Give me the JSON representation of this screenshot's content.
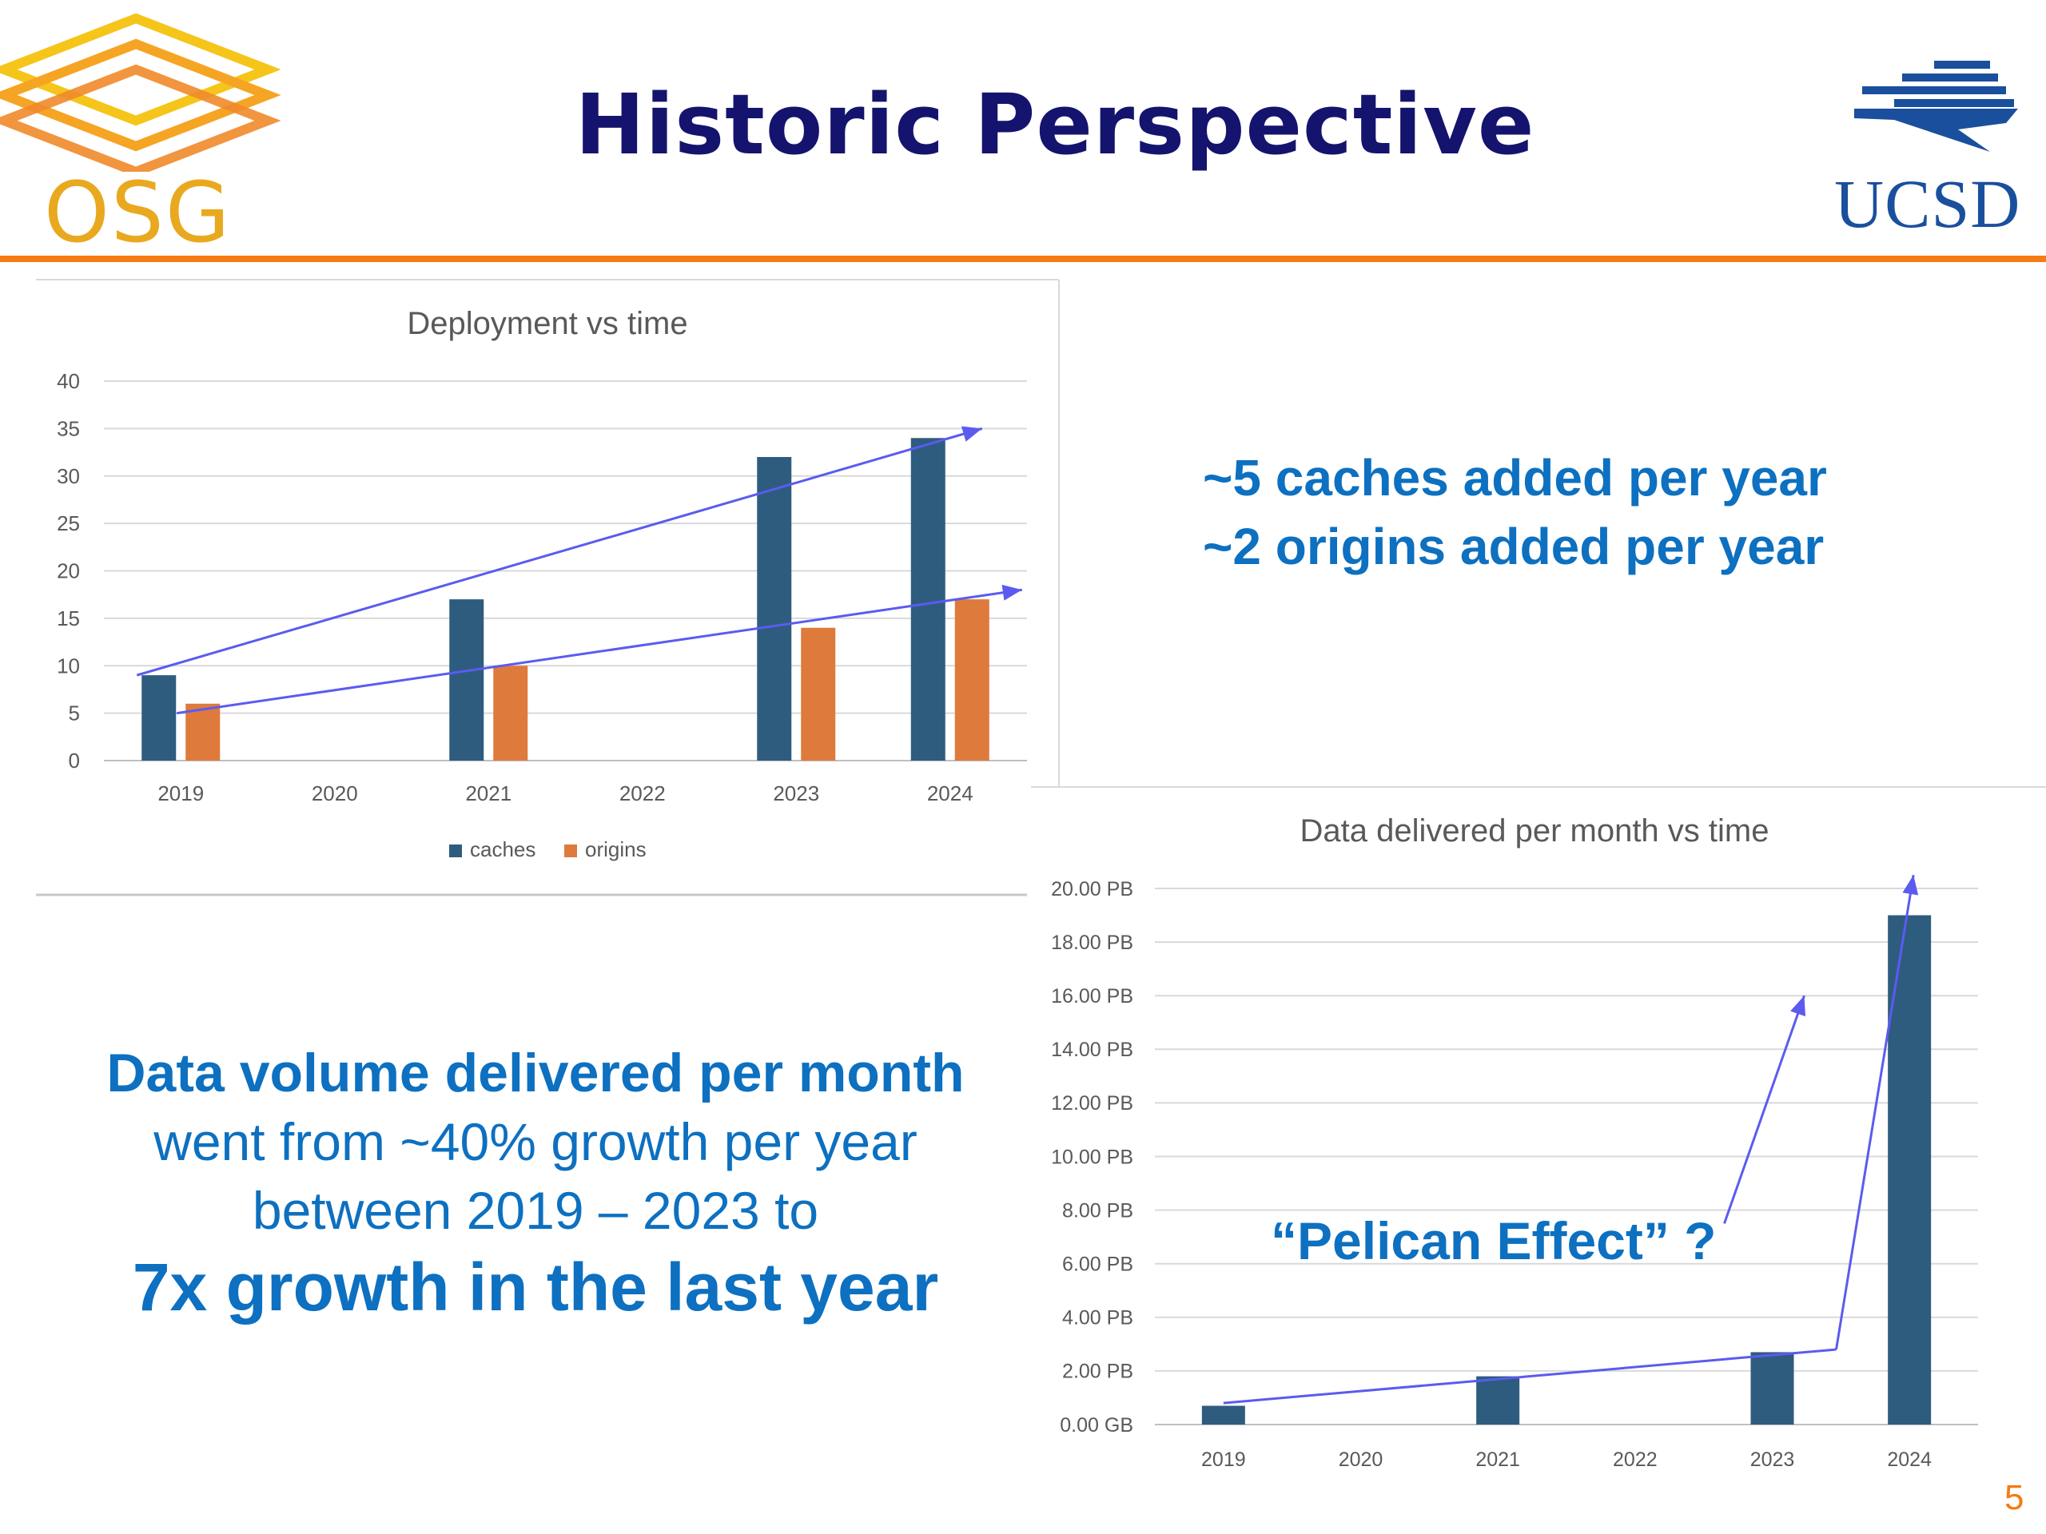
{
  "slide": {
    "title": "Historic Perspective",
    "logo_left": "OSG",
    "logo_right": "UCSD",
    "page_number": "5",
    "accent_color": "#f57b12",
    "title_color": "#14146e",
    "text_color": "#0d70c0"
  },
  "notes": {
    "line1": "~5 caches added per year",
    "line2": "~2 origins added per year",
    "pelican": "“Pelican Effect” ?"
  },
  "summary": {
    "line1": "Data volume delivered per month",
    "line2": "went from ~40% growth per year",
    "line3": "between 2019 – 2023 to",
    "line4": "7x growth in the last year"
  },
  "chart_data": [
    {
      "type": "bar",
      "title": "Deployment vs time",
      "categories": [
        "2019",
        "2020",
        "2021",
        "2022",
        "2023",
        "2024"
      ],
      "series": [
        {
          "name": "caches",
          "color": "#2e5c7f",
          "values": [
            9,
            null,
            17,
            null,
            32,
            34
          ]
        },
        {
          "name": "origins",
          "color": "#de7a3c",
          "values": [
            6,
            null,
            10,
            null,
            14,
            17
          ]
        }
      ],
      "ylim": [
        0,
        40
      ],
      "yticks": [
        "0",
        "5",
        "10",
        "15",
        "20",
        "25",
        "30",
        "35",
        "40"
      ],
      "grid": true,
      "legend": "bottom",
      "annotations": [
        {
          "type": "trend-arrow",
          "color": "#5b5bf0",
          "from": [
            "2019",
            9
          ],
          "to": [
            "2024",
            35
          ]
        },
        {
          "type": "trend-arrow",
          "color": "#5b5bf0",
          "from": [
            "2019",
            5
          ],
          "to": [
            "2024",
            18
          ]
        }
      ]
    },
    {
      "type": "bar",
      "title": "Data delivered per month vs time",
      "categories": [
        "2019",
        "2020",
        "2021",
        "2022",
        "2023",
        "2024"
      ],
      "series": [
        {
          "color": "#2e5c7f",
          "values": [
            0.7,
            null,
            1.8,
            null,
            2.7,
            19.0
          ]
        }
      ],
      "unit": "PB",
      "ylim": [
        0,
        20
      ],
      "yticks": [
        "0.00 GB",
        "2.00 PB",
        "4.00 PB",
        "6.00 PB",
        "8.00 PB",
        "10.00 PB",
        "12.00 PB",
        "14.00 PB",
        "16.00 PB",
        "18.00 PB",
        "20.00 PB"
      ],
      "grid": true,
      "annotations": [
        {
          "type": "trend-line",
          "color": "#5b5bf0",
          "from": [
            "2019",
            0.8
          ],
          "to": [
            "2023",
            2.8
          ]
        },
        {
          "type": "trend-arrow",
          "color": "#5b5bf0",
          "from": [
            "2023",
            2.8
          ],
          "to": [
            "2024",
            20.5
          ]
        },
        {
          "type": "trend-arrow",
          "color": "#5b5bf0",
          "from": [
            "2023",
            7.5
          ],
          "to": [
            "2023",
            16.0
          ]
        }
      ]
    }
  ]
}
